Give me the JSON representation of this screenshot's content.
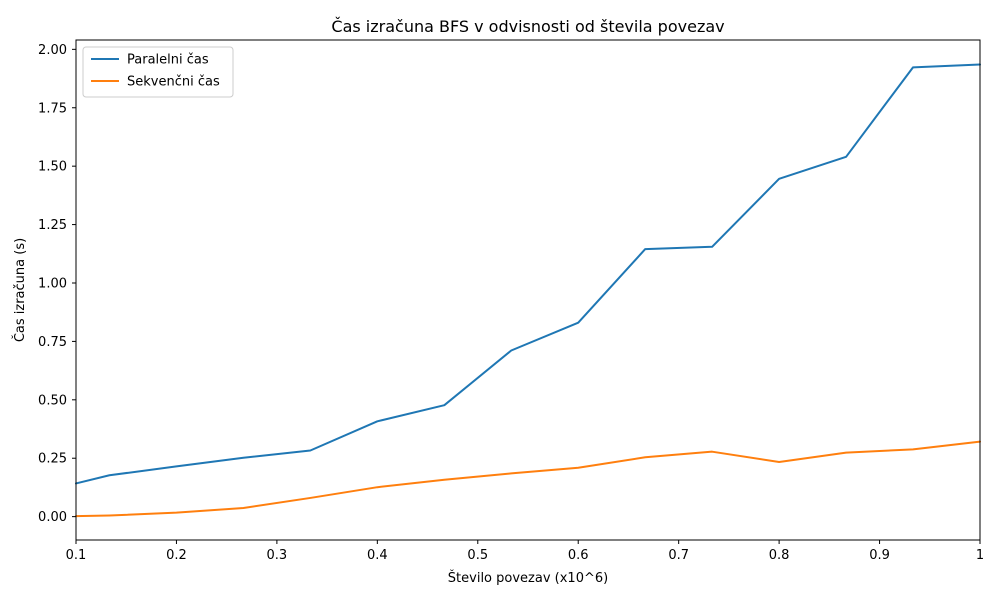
{
  "chart_data": {
    "type": "line",
    "title": "Čas izračuna BFS v odvisnosti od števila povezav",
    "xlabel": "Število povezav (x10^6)",
    "ylabel": "Čas izračuna (s)",
    "xlim": [
      0.1,
      1.0
    ],
    "ylim": [
      -0.1,
      2.04
    ],
    "x_ticks": [
      0.1,
      0.2,
      0.3,
      0.4,
      0.5,
      0.6,
      0.7,
      0.8,
      0.9,
      1.0
    ],
    "x_tick_labels": [
      "0.1",
      "0.2",
      "0.3",
      "0.4",
      "0.5",
      "0.6",
      "0.7",
      "0.8",
      "0.9",
      "1"
    ],
    "y_ticks": [
      0.0,
      0.25,
      0.5,
      0.75,
      1.0,
      1.25,
      1.5,
      1.75,
      2.0
    ],
    "y_tick_labels": [
      "0.00",
      "0.25",
      "0.50",
      "0.75",
      "1.00",
      "1.25",
      "1.50",
      "1.75",
      "2.00"
    ],
    "grid": false,
    "legend_position": "top-left",
    "x": [
      0.1,
      0.1333,
      0.2,
      0.2667,
      0.3333,
      0.4,
      0.4667,
      0.5333,
      0.6,
      0.6667,
      0.7333,
      0.8,
      0.8667,
      0.9333,
      1.0
    ],
    "series": [
      {
        "name": "Paralelni čas",
        "color": "#1f77b4",
        "values": [
          0.142,
          0.177,
          0.215,
          0.252,
          0.283,
          0.408,
          0.477,
          0.711,
          0.83,
          1.145,
          1.155,
          1.446,
          1.54,
          1.923,
          1.935
        ]
      },
      {
        "name": "Sekvenčni čas",
        "color": "#ff7f0e",
        "values": [
          0.002,
          0.005,
          0.017,
          0.037,
          0.08,
          0.126,
          0.158,
          0.185,
          0.209,
          0.254,
          0.278,
          0.234,
          0.274,
          0.288,
          0.321
        ]
      }
    ]
  }
}
